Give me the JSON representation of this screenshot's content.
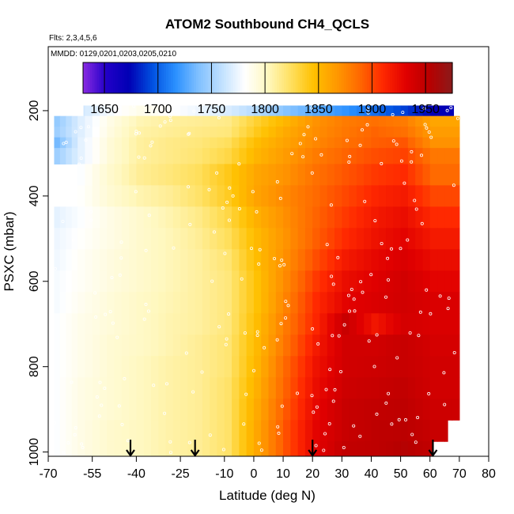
{
  "chart_data": {
    "type": "heatmap",
    "title": "ATOM2 Southbound CH4_QCLS",
    "flights_label": "Flts: 2,3,4,5,6",
    "dates_label": "MMDD: 0129,0201,0203,0205,0210",
    "xlabel": "Latitude (deg N)",
    "ylabel": "PSXC (mbar)",
    "xlim": [
      -70,
      80
    ],
    "ylim": [
      1010,
      50
    ],
    "y_reversed": true,
    "x_ticks": [
      -70,
      -55,
      -40,
      -25,
      -10,
      0,
      10,
      20,
      30,
      40,
      50,
      60,
      70,
      80
    ],
    "x_tick_labels": [
      "-70",
      "-55",
      "-40",
      "-25",
      "-10",
      "0",
      "10",
      "20",
      "30",
      "40",
      "50",
      "60",
      "70",
      "80"
    ],
    "y_ticks": [
      200,
      400,
      600,
      800,
      1000
    ],
    "y_tick_labels": [
      "200",
      "400",
      "600",
      "800",
      "1000"
    ],
    "colorbar": {
      "min": 1630,
      "max": 1975,
      "ticks": [
        1650,
        1700,
        1750,
        1800,
        1850,
        1900,
        1950
      ],
      "tick_labels": [
        "1650",
        "1700",
        "1750",
        "1800",
        "1850",
        "1900",
        "1950"
      ],
      "colors": [
        "#8a2be2",
        "#2200c8",
        "#0000b4",
        "#0050e0",
        "#2a90ff",
        "#80c0ff",
        "#c0e0ff",
        "#ffffff",
        "#fff8c0",
        "#ffe060",
        "#ffc000",
        "#ff9800",
        "#ff6800",
        "#ff2800",
        "#e00000",
        "#b80000",
        "#8b1a1a"
      ]
    },
    "arrows_latitude": [
      -42,
      -20,
      20,
      61
    ],
    "pressure_levels": [
      200,
      225,
      250,
      275,
      300,
      350,
      400,
      450,
      500,
      550,
      600,
      650,
      700,
      750,
      800,
      850,
      900,
      950,
      1000
    ],
    "latitude_edges": [
      -68,
      -60,
      -50,
      -40,
      -30,
      -20,
      -10,
      0,
      10,
      20,
      30,
      40,
      50,
      60,
      70
    ],
    "ch4_ppb_rows": [
      [
        1755,
        1765,
        1778,
        1788,
        1782,
        1775,
        1768,
        1755,
        1740,
        1728,
        1718,
        1705,
        1690,
        1672
      ],
      [
        1745,
        1770,
        1790,
        1805,
        1810,
        1812,
        1815,
        1835,
        1852,
        1870,
        1880,
        1885,
        1880,
        1860
      ],
      [
        1748,
        1770,
        1792,
        1808,
        1812,
        1815,
        1818,
        1840,
        1858,
        1872,
        1882,
        1890,
        1885,
        1865
      ],
      [
        1735,
        1772,
        1795,
        1810,
        1815,
        1818,
        1825,
        1848,
        1862,
        1875,
        1885,
        1892,
        1895,
        1870
      ],
      [
        1748,
        1772,
        1795,
        1810,
        1815,
        1820,
        1830,
        1852,
        1866,
        1880,
        1890,
        1898,
        1902,
        1882
      ],
      [
        1768,
        1780,
        1798,
        1812,
        1818,
        1825,
        1840,
        1860,
        1870,
        1885,
        1895,
        1905,
        1910,
        1888
      ],
      [
        1770,
        1782,
        1796,
        1806,
        1812,
        1822,
        1838,
        1862,
        1875,
        1888,
        1900,
        1912,
        1918,
        1900
      ],
      [
        1772,
        1780,
        1790,
        1798,
        1806,
        1815,
        1830,
        1855,
        1872,
        1890,
        1905,
        1918,
        1925,
        1910
      ],
      [
        1775,
        1782,
        1790,
        1798,
        1804,
        1812,
        1825,
        1850,
        1870,
        1892,
        1910,
        1922,
        1930,
        1918
      ],
      [
        1776,
        1784,
        1792,
        1798,
        1804,
        1810,
        1820,
        1848,
        1872,
        1898,
        1918,
        1928,
        1935,
        1925
      ],
      [
        1778,
        1784,
        1792,
        1798,
        1804,
        1810,
        1818,
        1845,
        1875,
        1905,
        1925,
        1932,
        1940,
        1930
      ],
      [
        1778,
        1786,
        1794,
        1800,
        1805,
        1810,
        1818,
        1845,
        1878,
        1910,
        1930,
        1935,
        1940,
        1935
      ],
      [
        1780,
        1788,
        1794,
        1800,
        1806,
        1810,
        1818,
        1848,
        1882,
        1912,
        1945,
        1920,
        1938,
        1935
      ],
      [
        1780,
        1788,
        1796,
        1800,
        1806,
        1812,
        1820,
        1850,
        1885,
        1918,
        1940,
        1940,
        1945,
        1938
      ],
      [
        1780,
        1788,
        1796,
        1802,
        1808,
        1812,
        1820,
        1852,
        1890,
        1922,
        1940,
        1942,
        1945,
        1940
      ],
      [
        1780,
        1790,
        1796,
        1802,
        1808,
        1812,
        1822,
        1855,
        1892,
        1925,
        1942,
        1945,
        1948,
        1940
      ],
      [
        1780,
        1790,
        1796,
        1802,
        1808,
        1812,
        1822,
        1858,
        1895,
        1928,
        1945,
        1948,
        1950,
        1942
      ],
      [
        1780,
        1790,
        1798,
        1802,
        1808,
        1812,
        1822,
        1860,
        1898,
        1930,
        1945,
        1950,
        1952,
        1945
      ],
      [
        1780,
        1790,
        1798,
        1802,
        1808,
        1812,
        1822,
        1860,
        1898,
        1930,
        1948,
        1950,
        1955,
        1948
      ]
    ],
    "row_latitude_ranges": [
      [
        -58,
        68
      ],
      [
        -68,
        70
      ],
      [
        -68,
        70
      ],
      [
        -68,
        70
      ],
      [
        -68,
        70
      ],
      [
        -60,
        70
      ],
      [
        -60,
        70
      ],
      [
        -68,
        70
      ],
      [
        -68,
        70
      ],
      [
        -68,
        70
      ],
      [
        -68,
        71
      ],
      [
        -68,
        71
      ],
      [
        -68,
        71
      ],
      [
        -68,
        71
      ],
      [
        -68,
        71
      ],
      [
        -68,
        72
      ],
      [
        -68,
        71
      ],
      [
        -68,
        66
      ],
      [
        -68,
        61
      ]
    ]
  }
}
